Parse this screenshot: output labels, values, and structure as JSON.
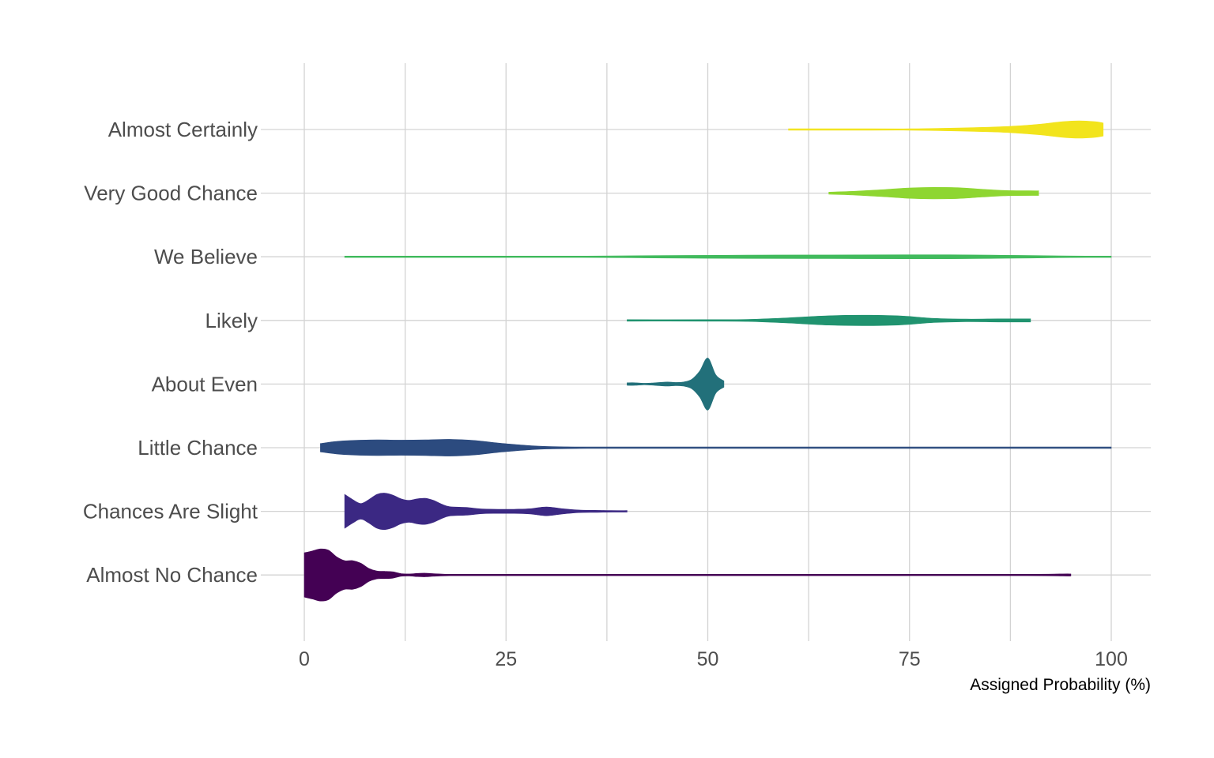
{
  "chart_data": {
    "type": "violin",
    "title": "",
    "xlabel": "Assigned Probability (%)",
    "ylabel": "",
    "xlim": [
      0,
      100
    ],
    "x_ticks": [
      0,
      25,
      50,
      75,
      100
    ],
    "x_tick_labels": [
      "0",
      "25",
      "50",
      "75",
      "100"
    ],
    "grid": true,
    "categories": [
      "Almost No Chance",
      "Chances Are Slight",
      "Little Chance",
      "About Even",
      "Likely",
      "We Believe",
      "Very Good Chance",
      "Almost Certainly"
    ],
    "series": [
      {
        "name": "Almost No Chance",
        "color": "#440154",
        "density": [
          [
            0,
            0.85
          ],
          [
            1,
            0.92
          ],
          [
            2,
            1.0
          ],
          [
            3,
            0.95
          ],
          [
            4,
            0.7
          ],
          [
            5,
            0.55
          ],
          [
            6,
            0.55
          ],
          [
            7,
            0.45
          ],
          [
            8,
            0.25
          ],
          [
            9,
            0.15
          ],
          [
            10,
            0.14
          ],
          [
            11,
            0.12
          ],
          [
            12,
            0.05
          ],
          [
            13,
            0.04
          ],
          [
            14,
            0.06
          ],
          [
            15,
            0.07
          ],
          [
            16,
            0.05
          ],
          [
            18,
            0.02
          ],
          [
            20,
            0.015
          ],
          [
            40,
            0.01
          ],
          [
            70,
            0.01
          ],
          [
            90,
            0.01
          ],
          [
            94,
            0.04
          ],
          [
            95,
            0.04
          ]
        ]
      },
      {
        "name": "Chances Are Slight",
        "color": "#3B2883",
        "density": [
          [
            5,
            0.65
          ],
          [
            6,
            0.45
          ],
          [
            7,
            0.3
          ],
          [
            8,
            0.45
          ],
          [
            9,
            0.65
          ],
          [
            10,
            0.7
          ],
          [
            11,
            0.62
          ],
          [
            12,
            0.48
          ],
          [
            13,
            0.42
          ],
          [
            14,
            0.48
          ],
          [
            15,
            0.5
          ],
          [
            16,
            0.42
          ],
          [
            17,
            0.28
          ],
          [
            18,
            0.18
          ],
          [
            20,
            0.15
          ],
          [
            22,
            0.09
          ],
          [
            24,
            0.08
          ],
          [
            26,
            0.08
          ],
          [
            28,
            0.1
          ],
          [
            30,
            0.17
          ],
          [
            32,
            0.1
          ],
          [
            34,
            0.05
          ],
          [
            36,
            0.04
          ],
          [
            38,
            0.03
          ],
          [
            40,
            0.03
          ]
        ]
      },
      {
        "name": "Little Chance",
        "color": "#2C4B7F",
        "density": [
          [
            2,
            0.16
          ],
          [
            4,
            0.24
          ],
          [
            6,
            0.28
          ],
          [
            9,
            0.3
          ],
          [
            12,
            0.29
          ],
          [
            15,
            0.3
          ],
          [
            18,
            0.32
          ],
          [
            21,
            0.28
          ],
          [
            24,
            0.18
          ],
          [
            27,
            0.1
          ],
          [
            30,
            0.05
          ],
          [
            35,
            0.02
          ],
          [
            45,
            0.01
          ],
          [
            60,
            0.01
          ],
          [
            80,
            0.01
          ],
          [
            97,
            0.01
          ],
          [
            99,
            0.015
          ],
          [
            100,
            0.015
          ]
        ]
      },
      {
        "name": "About Even",
        "color": "#22707A",
        "density": [
          [
            40,
            0.05
          ],
          [
            41,
            0.05
          ],
          [
            42,
            0.03
          ],
          [
            43,
            0.04
          ],
          [
            44,
            0.06
          ],
          [
            45,
            0.08
          ],
          [
            46,
            0.06
          ],
          [
            47,
            0.08
          ],
          [
            48,
            0.18
          ],
          [
            49,
            0.5
          ],
          [
            50,
            1.0
          ],
          [
            51,
            0.35
          ],
          [
            52,
            0.12
          ]
        ]
      },
      {
        "name": "Likely",
        "color": "#20936F",
        "density": [
          [
            40,
            0.03
          ],
          [
            45,
            0.025
          ],
          [
            50,
            0.03
          ],
          [
            55,
            0.04
          ],
          [
            60,
            0.1
          ],
          [
            65,
            0.18
          ],
          [
            70,
            0.2
          ],
          [
            74,
            0.17
          ],
          [
            78,
            0.08
          ],
          [
            82,
            0.05
          ],
          [
            86,
            0.06
          ],
          [
            90,
            0.06
          ]
        ]
      },
      {
        "name": "We Believe",
        "color": "#41BA5D",
        "density": [
          [
            5,
            0.015
          ],
          [
            20,
            0.02
          ],
          [
            35,
            0.025
          ],
          [
            45,
            0.05
          ],
          [
            55,
            0.065
          ],
          [
            65,
            0.07
          ],
          [
            75,
            0.075
          ],
          [
            80,
            0.075
          ],
          [
            85,
            0.065
          ],
          [
            90,
            0.05
          ],
          [
            95,
            0.03
          ],
          [
            100,
            0.015
          ]
        ]
      },
      {
        "name": "Very Good Chance",
        "color": "#8ED631",
        "density": [
          [
            65,
            0.04
          ],
          [
            68,
            0.07
          ],
          [
            72,
            0.14
          ],
          [
            75,
            0.2
          ],
          [
            78,
            0.22
          ],
          [
            81,
            0.21
          ],
          [
            84,
            0.15
          ],
          [
            87,
            0.1
          ],
          [
            90,
            0.09
          ],
          [
            91,
            0.09
          ]
        ]
      },
      {
        "name": "Almost Certainly",
        "color": "#F2E41D",
        "density": [
          [
            60,
            0.02
          ],
          [
            70,
            0.02
          ],
          [
            75,
            0.025
          ],
          [
            80,
            0.05
          ],
          [
            85,
            0.09
          ],
          [
            88,
            0.13
          ],
          [
            91,
            0.2
          ],
          [
            94,
            0.3
          ],
          [
            96,
            0.33
          ],
          [
            98,
            0.3
          ],
          [
            99,
            0.25
          ]
        ]
      }
    ]
  }
}
